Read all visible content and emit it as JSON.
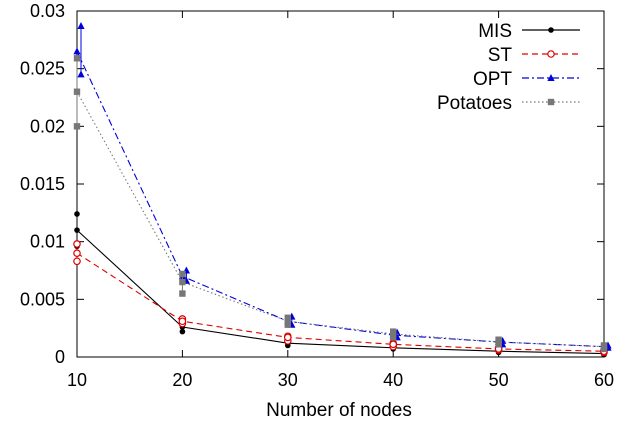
{
  "chart_data": {
    "type": "line",
    "xlabel": "Number of nodes",
    "ylabel": "",
    "xlim": [
      10,
      60
    ],
    "ylim": [
      0,
      0.03
    ],
    "x_ticks": [
      "10",
      "20",
      "30",
      "40",
      "50",
      "60"
    ],
    "y_ticks": [
      "0",
      "0.005",
      "0.01",
      "0.015",
      "0.02",
      "0.025",
      "0.03"
    ],
    "legend_position": "top-right",
    "grid": false,
    "series": [
      {
        "name": "MIS",
        "color": "#000000",
        "dash": "solid",
        "marker": "circle",
        "mean": [
          [
            10,
            0.011
          ],
          [
            20,
            0.0026
          ],
          [
            30,
            0.0012
          ],
          [
            40,
            0.0008
          ],
          [
            50,
            0.0005
          ],
          [
            60,
            0.0003
          ]
        ],
        "samples": [
          [
            10,
            0.0124
          ],
          [
            10,
            0.0096
          ],
          [
            20,
            0.0022
          ],
          [
            20,
            0.003
          ],
          [
            30,
            0.001
          ],
          [
            30,
            0.0015
          ],
          [
            40,
            0.0007
          ],
          [
            40,
            0.001
          ],
          [
            50,
            0.0004
          ],
          [
            50,
            0.0006
          ],
          [
            60,
            0.0002
          ],
          [
            60,
            0.0004
          ]
        ]
      },
      {
        "name": "ST",
        "color": "#e00000",
        "dash": "dashed",
        "marker": "open-circle",
        "mean": [
          [
            10,
            0.009
          ],
          [
            20,
            0.0031
          ],
          [
            30,
            0.0017
          ],
          [
            40,
            0.0011
          ],
          [
            50,
            0.0007
          ],
          [
            60,
            0.0005
          ]
        ],
        "samples": [
          [
            10,
            0.0098
          ],
          [
            10,
            0.0083
          ],
          [
            20,
            0.0029
          ],
          [
            20,
            0.0033
          ],
          [
            30,
            0.0014
          ],
          [
            30,
            0.0018
          ],
          [
            40,
            0.0009
          ],
          [
            40,
            0.0012
          ],
          [
            50,
            0.0006
          ],
          [
            50,
            0.0008
          ],
          [
            60,
            0.0004
          ],
          [
            60,
            0.0006
          ]
        ]
      },
      {
        "name": "OPT",
        "color": "#0000dd",
        "dash": "dash-dot",
        "marker": "triangle",
        "mean": [
          [
            10,
            0.0265
          ],
          [
            20,
            0.007
          ],
          [
            30,
            0.0031
          ],
          [
            40,
            0.0019
          ],
          [
            50,
            0.0013
          ],
          [
            60,
            0.0009
          ]
        ],
        "samples": [
          [
            10,
            0.0287
          ],
          [
            10,
            0.0245
          ],
          [
            20,
            0.0075
          ],
          [
            20,
            0.0066
          ],
          [
            30,
            0.0035
          ],
          [
            30,
            0.0028
          ],
          [
            40,
            0.0021
          ],
          [
            40,
            0.0017
          ],
          [
            50,
            0.0014
          ],
          [
            50,
            0.0011
          ],
          [
            60,
            0.001
          ],
          [
            60,
            0.0008
          ]
        ]
      },
      {
        "name": "Potatoes",
        "color": "#777777",
        "dash": "dotted",
        "marker": "square",
        "mean": [
          [
            10,
            0.023
          ],
          [
            20,
            0.0065
          ],
          [
            30,
            0.0031
          ],
          [
            40,
            0.002
          ],
          [
            50,
            0.0013
          ],
          [
            60,
            0.0009
          ]
        ],
        "samples": [
          [
            10,
            0.0259
          ],
          [
            10,
            0.02
          ],
          [
            20,
            0.0072
          ],
          [
            20,
            0.0055
          ],
          [
            30,
            0.0034
          ],
          [
            30,
            0.0028
          ],
          [
            40,
            0.0022
          ],
          [
            40,
            0.0017
          ],
          [
            50,
            0.0015
          ],
          [
            50,
            0.0011
          ],
          [
            60,
            0.001
          ],
          [
            60,
            0.0007
          ]
        ]
      }
    ]
  }
}
